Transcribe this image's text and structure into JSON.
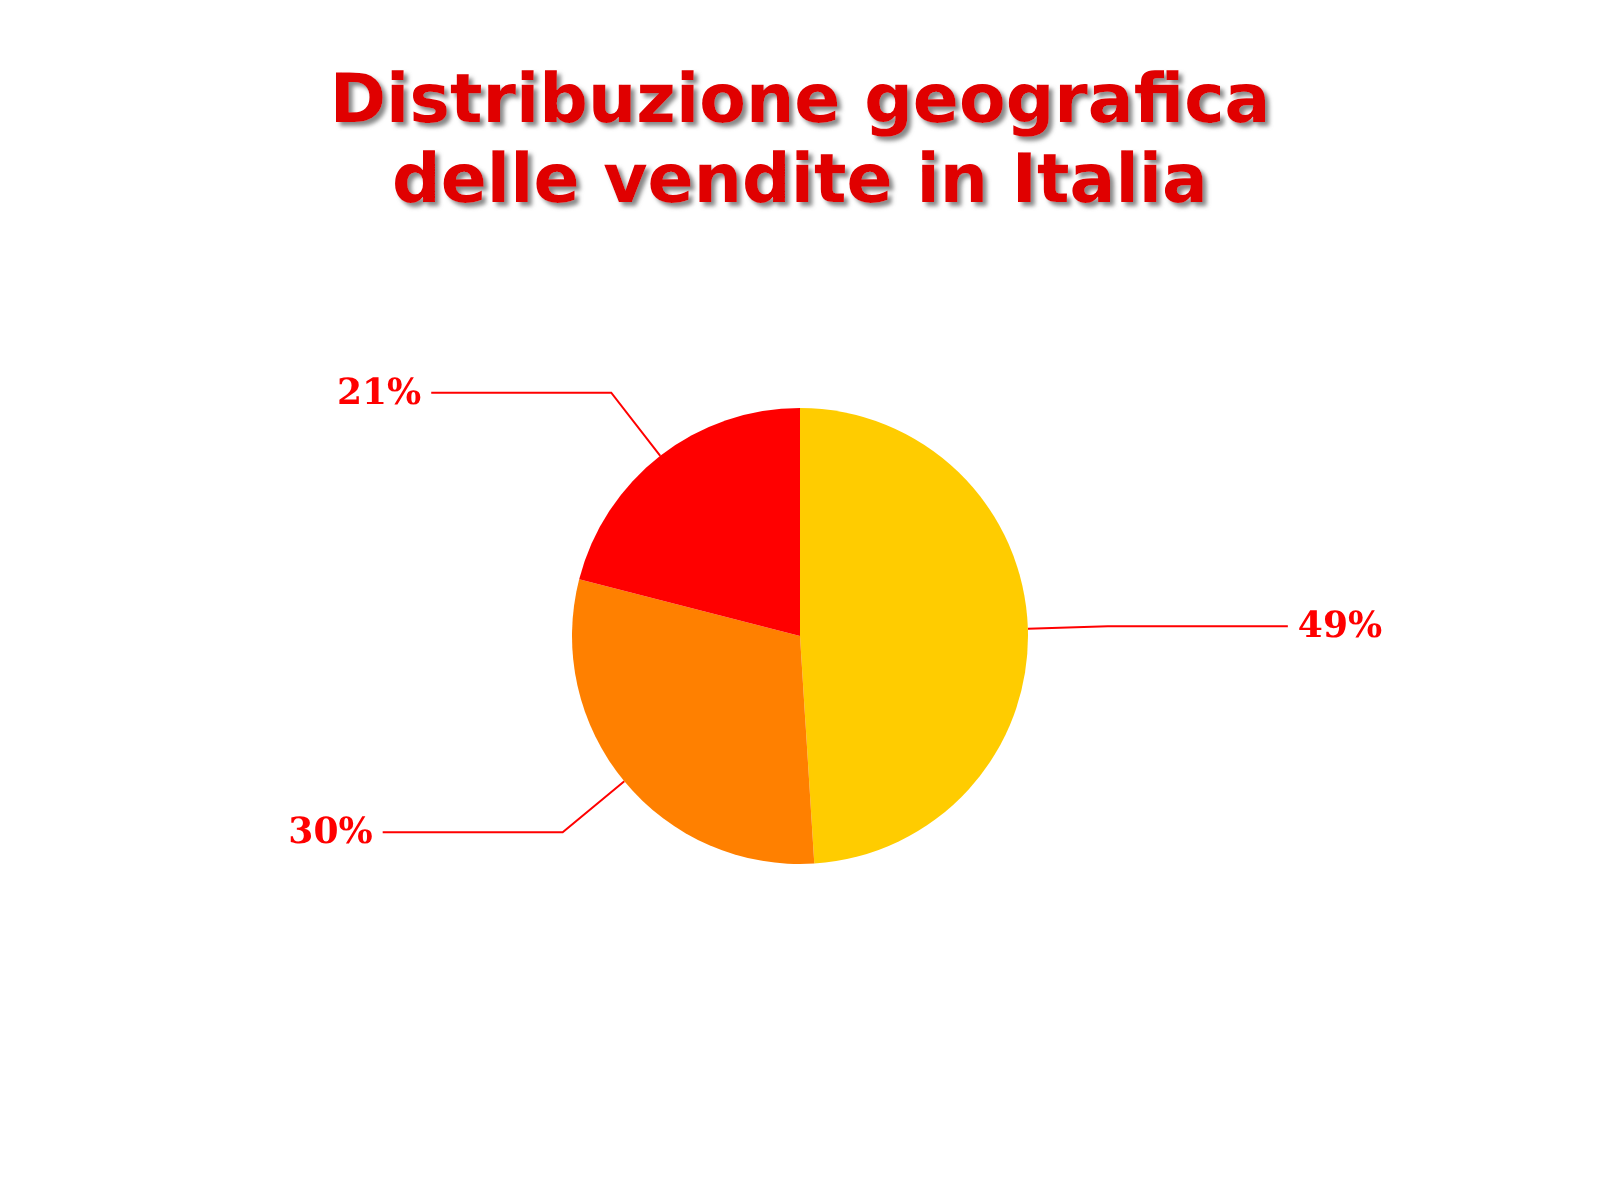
{
  "chart_data": {
    "type": "pie",
    "title": "Distribuzione geografica\ndelle vendite in Italia",
    "categories": [
      null,
      null,
      null
    ],
    "values": [
      49,
      30,
      21
    ],
    "colors": [
      "#ffcc00",
      "#ff8000",
      "#ff0000"
    ],
    "value_labels": [
      "49%",
      "30%",
      "21%"
    ]
  }
}
